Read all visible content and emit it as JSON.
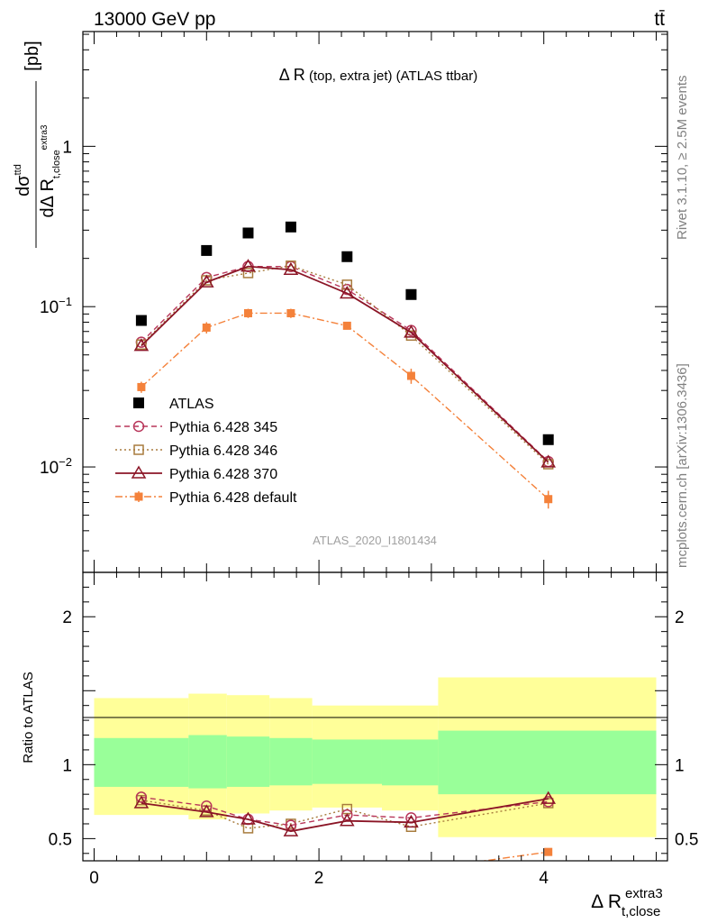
{
  "header": {
    "energy_label": "13000 GeV pp",
    "process_label": "tt̄",
    "side_rivet": "Rivet 3.1.10, ≥ 2.5M events",
    "side_mcplots": "mcplots.cern.ch [arXiv:1306.3436]",
    "analysis_id": "ATLAS_2020_I1801434"
  },
  "chart_data": [
    {
      "type": "scatter",
      "title_main": "Δ R",
      "title_sub": " (top, extra jet) (ATLAS ttbar)",
      "ylabel": "dσ^ttd / dΔ R_t,close^extra3 [pb]",
      "ylabel_unit": "[pb]",
      "yscale": "log",
      "ylim": [
        0.0022,
        5.2
      ],
      "xlim": [
        -0.1,
        5.1
      ],
      "y_ticks": [
        {
          "value": 1,
          "label": "1"
        },
        {
          "value": 0.1,
          "label": "10⁻¹"
        },
        {
          "value": 0.01,
          "label": "10⁻²"
        }
      ],
      "legend_position": "lower-left",
      "series": [
        {
          "name": "ATLAS",
          "color": "#000000",
          "marker": "square-filled",
          "line": "none",
          "x": [
            0.42,
            1.0,
            1.37,
            1.75,
            2.25,
            2.82,
            4.04
          ],
          "y": [
            0.082,
            0.224,
            0.288,
            0.314,
            0.205,
            0.119,
            0.0148
          ]
        },
        {
          "name": "Pythia 6.428 345",
          "color": "#b8365a",
          "marker": "circle-open",
          "line": "dashed",
          "x": [
            0.42,
            1.0,
            1.37,
            1.75,
            2.25,
            2.82,
            4.04
          ],
          "y": [
            0.06,
            0.152,
            0.178,
            0.178,
            0.128,
            0.071,
            0.0108
          ]
        },
        {
          "name": "Pythia 6.428 346",
          "color": "#a87c3e",
          "marker": "square-open",
          "line": "dotted",
          "x": [
            0.42,
            1.0,
            1.37,
            1.75,
            2.25,
            2.82,
            4.04
          ],
          "y": [
            0.058,
            0.146,
            0.162,
            0.18,
            0.137,
            0.066,
            0.0104
          ]
        },
        {
          "name": "Pythia 6.428 370",
          "color": "#8b1526",
          "marker": "triangle-open",
          "line": "solid",
          "x": [
            0.42,
            1.0,
            1.37,
            1.75,
            2.25,
            2.82,
            4.04
          ],
          "y": [
            0.057,
            0.142,
            0.178,
            0.17,
            0.121,
            0.069,
            0.0107
          ]
        },
        {
          "name": "Pythia 6.428 default",
          "color": "#f4813a",
          "marker": "square-filled-small",
          "line": "dashdot",
          "x": [
            0.42,
            1.0,
            1.37,
            1.75,
            2.25,
            2.82,
            4.04
          ],
          "y": [
            0.0315,
            0.074,
            0.091,
            0.091,
            0.076,
            0.037,
            0.0063
          ],
          "yerr": [
            0.0025,
            0.006,
            0.006,
            0.006,
            0.004,
            0.004,
            0.0008
          ]
        }
      ]
    },
    {
      "type": "scatter",
      "ylabel": "Ratio to ATLAS",
      "xlabel_main": "Δ R",
      "xlabel_sup": "extra3",
      "xlabel_sub": "t,close",
      "ylim": [
        0.35,
        2.3
      ],
      "xlim": [
        -0.1,
        5.1
      ],
      "x_ticks": [
        {
          "value": 0,
          "label": "0"
        },
        {
          "value": 2,
          "label": "2"
        },
        {
          "value": 4,
          "label": "4"
        }
      ],
      "y_ticks": [
        {
          "value": 0.5,
          "label": "0.5"
        },
        {
          "value": 1,
          "label": "1"
        },
        {
          "value": 2,
          "label": "2"
        }
      ],
      "uncertainty_bands": [
        {
          "x0": 0.0,
          "x1": 0.84,
          "inner": [
            0.85,
            1.18
          ],
          "outer": [
            0.66,
            1.45
          ]
        },
        {
          "x0": 0.84,
          "x1": 1.18,
          "inner": [
            0.84,
            1.2
          ],
          "outer": [
            0.63,
            1.48
          ]
        },
        {
          "x0": 1.18,
          "x1": 1.56,
          "inner": [
            0.85,
            1.19
          ],
          "outer": [
            0.67,
            1.47
          ]
        },
        {
          "x0": 1.56,
          "x1": 1.94,
          "inner": [
            0.86,
            1.18
          ],
          "outer": [
            0.69,
            1.45
          ]
        },
        {
          "x0": 1.94,
          "x1": 2.56,
          "inner": [
            0.87,
            1.17
          ],
          "outer": [
            0.71,
            1.4
          ]
        },
        {
          "x0": 2.56,
          "x1": 3.06,
          "inner": [
            0.86,
            1.17
          ],
          "outer": [
            0.69,
            1.4
          ]
        },
        {
          "x0": 3.06,
          "x1": 5.0,
          "inner": [
            0.8,
            1.23
          ],
          "outer": [
            0.51,
            1.59
          ]
        }
      ],
      "series": [
        {
          "name": "Pythia 6.428 345",
          "color": "#b8365a",
          "marker": "circle-open",
          "line": "dashed",
          "x": [
            0.42,
            1.0,
            1.37,
            1.75,
            2.25,
            2.82,
            4.04
          ],
          "y": [
            0.78,
            0.72,
            0.63,
            0.59,
            0.66,
            0.64,
            0.75
          ]
        },
        {
          "name": "Pythia 6.428 346",
          "color": "#a87c3e",
          "marker": "square-open",
          "line": "dotted",
          "x": [
            0.42,
            1.0,
            1.37,
            1.75,
            2.25,
            2.82,
            4.04
          ],
          "y": [
            0.76,
            0.69,
            0.57,
            0.6,
            0.7,
            0.58,
            0.74
          ]
        },
        {
          "name": "Pythia 6.428 370",
          "color": "#8b1526",
          "marker": "triangle-open",
          "line": "solid",
          "x": [
            0.42,
            1.0,
            1.37,
            1.75,
            2.25,
            2.82,
            4.04
          ],
          "y": [
            0.74,
            0.68,
            0.63,
            0.55,
            0.62,
            0.61,
            0.77
          ]
        },
        {
          "name": "Pythia 6.428 default",
          "color": "#f4813a",
          "marker": "square-filled-small",
          "line": "dashdot",
          "x": [
            3.0,
            4.04
          ],
          "y": [
            0.3,
            0.41
          ]
        }
      ]
    }
  ]
}
